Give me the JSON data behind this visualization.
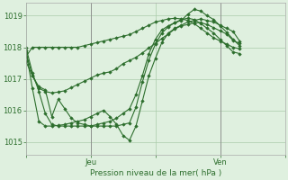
{
  "bg_color": "#dff0df",
  "grid_color": "#aaccaa",
  "line_color": "#2d6e2d",
  "marker_color": "#2d6e2d",
  "xlabel": "Pression niveau de la mer( hPa )",
  "ylim": [
    1014.6,
    1019.4
  ],
  "yticks": [
    1015,
    1016,
    1017,
    1018,
    1019
  ],
  "xtick_labels": [
    "",
    "Jeu",
    "",
    "Ven",
    ""
  ],
  "xtick_positions": [
    0,
    10,
    20,
    30,
    40
  ],
  "xlim": [
    0,
    40
  ],
  "lines": [
    [
      1017.7,
      1018.0,
      1018.0,
      1018.0,
      1018.0,
      1018.0,
      1018.0,
      1018.0,
      1018.0,
      1018.05,
      1018.1,
      1018.15,
      1018.2,
      1018.25,
      1018.3,
      1018.35,
      1018.4,
      1018.5,
      1018.6,
      1018.7,
      1018.8,
      1018.85,
      1018.9,
      1018.92,
      1018.9,
      1018.85,
      1018.75,
      1018.6,
      1018.45,
      1018.3,
      1018.2,
      1018.1,
      1018.0,
      1017.95
    ],
    [
      1017.9,
      1016.7,
      1015.65,
      1015.5,
      1015.5,
      1015.52,
      1015.55,
      1015.6,
      1015.65,
      1015.7,
      1015.8,
      1015.9,
      1016.0,
      1015.8,
      1015.55,
      1015.2,
      1015.05,
      1015.5,
      1016.3,
      1017.1,
      1017.65,
      1018.15,
      1018.45,
      1018.6,
      1018.7,
      1018.8,
      1018.85,
      1018.9,
      1018.85,
      1018.8,
      1018.7,
      1018.6,
      1018.5,
      1018.2
    ],
    [
      1018.0,
      1017.2,
      1016.6,
      1015.9,
      1015.55,
      1015.5,
      1015.5,
      1015.5,
      1015.5,
      1015.5,
      1015.5,
      1015.5,
      1015.5,
      1015.5,
      1015.5,
      1015.55,
      1015.6,
      1016.1,
      1016.9,
      1017.6,
      1018.1,
      1018.45,
      1018.65,
      1018.78,
      1018.88,
      1018.92,
      1018.88,
      1018.75,
      1018.6,
      1018.45,
      1018.25,
      1018.05,
      1017.85,
      1017.8
    ],
    [
      1017.85,
      1017.1,
      1016.75,
      1016.65,
      1015.8,
      1016.35,
      1016.05,
      1015.75,
      1015.6,
      1015.55,
      1015.5,
      1015.55,
      1015.6,
      1015.65,
      1015.75,
      1015.9,
      1016.05,
      1016.5,
      1017.1,
      1017.8,
      1018.25,
      1018.55,
      1018.68,
      1018.78,
      1018.85,
      1019.05,
      1019.2,
      1019.15,
      1019.0,
      1018.88,
      1018.68,
      1018.48,
      1018.25,
      1018.05
    ],
    [
      1017.55,
      1017.1,
      1016.7,
      1016.6,
      1016.55,
      1016.58,
      1016.62,
      1016.72,
      1016.82,
      1016.92,
      1017.02,
      1017.12,
      1017.18,
      1017.22,
      1017.32,
      1017.48,
      1017.58,
      1017.68,
      1017.82,
      1017.98,
      1018.12,
      1018.28,
      1018.42,
      1018.58,
      1018.68,
      1018.72,
      1018.78,
      1018.78,
      1018.72,
      1018.62,
      1018.52,
      1018.42,
      1018.22,
      1018.12
    ]
  ],
  "x_jeu": 10,
  "x_ven": 30,
  "vline_color": "#888888",
  "title_fontsize": 6,
  "tick_fontsize": 6,
  "xlabel_fontsize": 6.5
}
